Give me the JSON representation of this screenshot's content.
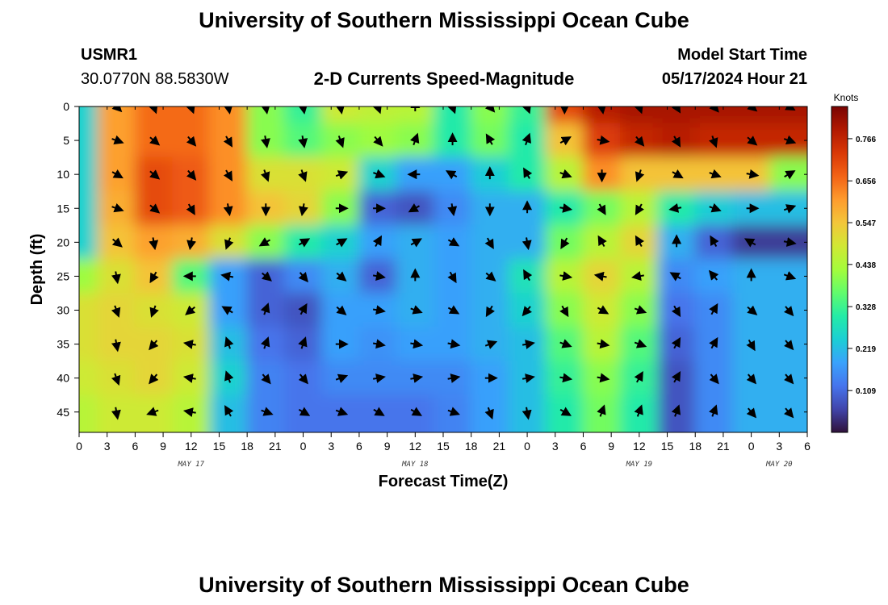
{
  "header": {
    "title_top": "University of Southern Mississippi Ocean Cube",
    "station_id": "USMR1",
    "coordinates": "30.0770N  88.5830W",
    "plot_title": "2-D Currents Speed-Magnitude",
    "model_label": "Model Start Time",
    "model_time": "05/17/2024 Hour 21",
    "title_bottom": "University of Southern Mississippi Ocean Cube"
  },
  "chart_data": {
    "type": "heatmap",
    "title": "2-D Currents Speed-Magnitude",
    "xlabel": "Forecast Time(Z)",
    "ylabel": "Depth (ft)",
    "x_ticks": [
      "0",
      "3",
      "6",
      "9",
      "12",
      "15",
      "18",
      "21",
      "0",
      "3",
      "6",
      "9",
      "12",
      "15",
      "18",
      "21",
      "0",
      "3",
      "6",
      "9",
      "12",
      "15",
      "18",
      "21",
      "0",
      "3",
      "6"
    ],
    "x_hours_from_may17_00z": [
      0,
      3,
      6,
      9,
      12,
      15,
      18,
      21,
      24,
      27,
      30,
      33,
      36,
      39,
      42,
      45,
      48,
      51,
      54,
      57,
      60,
      63,
      66,
      69,
      72,
      75,
      78
    ],
    "date_labels": [
      {
        "label": "MAY 17",
        "hour": 12
      },
      {
        "label": "MAY 18",
        "hour": 36
      },
      {
        "label": "MAY 19",
        "hour": 60
      },
      {
        "label": "MAY 20",
        "hour": 75
      }
    ],
    "y_ticks": [
      0,
      5,
      10,
      15,
      20,
      25,
      30,
      35,
      40,
      45
    ],
    "ylim": [
      0,
      48
    ],
    "xlim": [
      0,
      78
    ],
    "colorbar": {
      "title": "Knots",
      "ticks": [
        0.766,
        0.656,
        0.547,
        0.438,
        0.328,
        0.219,
        0.109
      ],
      "range": [
        0.0,
        0.85
      ],
      "colors": [
        "#30123b",
        "#4145ab",
        "#4675ed",
        "#39a2fc",
        "#1bcfd4",
        "#24eca6",
        "#61fc6c",
        "#a4fc3b",
        "#d1e834",
        "#f3c63a",
        "#fe9b2d",
        "#f36315",
        "#d93806",
        "#b11901",
        "#7a0402"
      ]
    },
    "speed_grid": {
      "hours": [
        0,
        4,
        8,
        12,
        16,
        20,
        24,
        28,
        32,
        36,
        40,
        44,
        48,
        52,
        56,
        60,
        64,
        68,
        72,
        76,
        78
      ],
      "depths": [
        0,
        5,
        10,
        15,
        20,
        25,
        30,
        35,
        40,
        45,
        48
      ],
      "values": [
        [
          0.25,
          0.6,
          0.66,
          0.66,
          0.62,
          0.4,
          0.32,
          0.48,
          0.46,
          0.45,
          0.3,
          0.4,
          0.32,
          0.7,
          0.78,
          0.8,
          0.8,
          0.8,
          0.8,
          0.8,
          0.8
        ],
        [
          0.25,
          0.6,
          0.66,
          0.66,
          0.62,
          0.4,
          0.35,
          0.4,
          0.42,
          0.4,
          0.3,
          0.38,
          0.3,
          0.55,
          0.72,
          0.76,
          0.78,
          0.76,
          0.76,
          0.76,
          0.76
        ],
        [
          0.25,
          0.6,
          0.7,
          0.68,
          0.62,
          0.5,
          0.5,
          0.48,
          0.25,
          0.18,
          0.18,
          0.24,
          0.3,
          0.45,
          0.62,
          0.55,
          0.55,
          0.55,
          0.55,
          0.4,
          0.4
        ],
        [
          0.25,
          0.58,
          0.7,
          0.68,
          0.62,
          0.55,
          0.52,
          0.4,
          0.1,
          0.08,
          0.15,
          0.2,
          0.2,
          0.3,
          0.38,
          0.45,
          0.3,
          0.24,
          0.22,
          0.22,
          0.22
        ],
        [
          0.25,
          0.55,
          0.6,
          0.58,
          0.5,
          0.4,
          0.3,
          0.25,
          0.18,
          0.2,
          0.18,
          0.2,
          0.2,
          0.38,
          0.45,
          0.52,
          0.2,
          0.1,
          0.05,
          0.05,
          0.05
        ],
        [
          0.42,
          0.5,
          0.55,
          0.35,
          0.18,
          0.1,
          0.15,
          0.2,
          0.1,
          0.2,
          0.18,
          0.2,
          0.28,
          0.45,
          0.52,
          0.45,
          0.15,
          0.18,
          0.2,
          0.2,
          0.2
        ],
        [
          0.5,
          0.52,
          0.5,
          0.48,
          0.18,
          0.1,
          0.08,
          0.18,
          0.18,
          0.2,
          0.18,
          0.2,
          0.25,
          0.4,
          0.48,
          0.4,
          0.12,
          0.15,
          0.2,
          0.2,
          0.2
        ],
        [
          0.5,
          0.52,
          0.52,
          0.5,
          0.22,
          0.12,
          0.1,
          0.18,
          0.16,
          0.18,
          0.18,
          0.2,
          0.22,
          0.35,
          0.45,
          0.35,
          0.1,
          0.15,
          0.2,
          0.2,
          0.2
        ],
        [
          0.48,
          0.5,
          0.52,
          0.48,
          0.25,
          0.14,
          0.12,
          0.15,
          0.15,
          0.15,
          0.15,
          0.18,
          0.22,
          0.32,
          0.4,
          0.32,
          0.08,
          0.15,
          0.2,
          0.2,
          0.2
        ],
        [
          0.45,
          0.48,
          0.48,
          0.45,
          0.22,
          0.14,
          0.12,
          0.12,
          0.12,
          0.12,
          0.14,
          0.18,
          0.22,
          0.3,
          0.38,
          0.3,
          0.08,
          0.15,
          0.2,
          0.2,
          0.2
        ],
        [
          0.45,
          0.48,
          0.48,
          0.45,
          0.22,
          0.14,
          0.12,
          0.12,
          0.12,
          0.12,
          0.14,
          0.18,
          0.22,
          0.3,
          0.38,
          0.3,
          0.08,
          0.15,
          0.2,
          0.2,
          0.2
        ]
      ]
    },
    "vector_grid": {
      "hours": [
        4,
        8,
        12,
        16,
        20,
        24,
        28,
        32,
        36,
        40,
        44,
        48,
        52,
        56,
        60,
        64,
        68,
        72,
        76
      ],
      "depths": [
        0,
        5,
        10,
        15,
        20,
        25,
        30,
        35,
        40,
        45
      ],
      "directions_deg": [
        [
          135,
          160,
          160,
          170,
          170,
          170,
          170,
          160,
          0,
          160,
          140,
          160,
          180,
          170,
          160,
          150,
          140,
          130,
          120
        ],
        [
          110,
          130,
          140,
          150,
          170,
          170,
          160,
          140,
          20,
          0,
          330,
          20,
          60,
          100,
          140,
          150,
          160,
          130,
          110
        ],
        [
          120,
          130,
          140,
          150,
          160,
          160,
          70,
          110,
          270,
          300,
          0,
          330,
          110,
          180,
          200,
          120,
          110,
          100,
          60
        ],
        [
          110,
          130,
          150,
          170,
          180,
          190,
          90,
          90,
          240,
          170,
          180,
          0,
          100,
          150,
          210,
          260,
          110,
          90,
          70
        ],
        [
          130,
          170,
          190,
          200,
          240,
          60,
          60,
          30,
          60,
          120,
          150,
          170,
          210,
          330,
          330,
          0,
          330,
          300,
          100
        ],
        [
          170,
          210,
          270,
          280,
          130,
          140,
          130,
          100,
          0,
          150,
          130,
          330,
          100,
          280,
          260,
          300,
          320,
          0,
          110
        ],
        [
          160,
          200,
          230,
          300,
          20,
          30,
          130,
          100,
          110,
          120,
          210,
          220,
          150,
          120,
          110,
          150,
          30,
          130,
          140
        ],
        [
          170,
          220,
          280,
          340,
          20,
          20,
          90,
          100,
          100,
          100,
          70,
          80,
          110,
          100,
          110,
          30,
          30,
          150,
          140
        ],
        [
          160,
          220,
          280,
          340,
          140,
          140,
          70,
          80,
          80,
          80,
          90,
          80,
          100,
          100,
          30,
          30,
          140,
          140,
          140
        ],
        [
          170,
          250,
          280,
          330,
          110,
          120,
          110,
          120,
          120,
          110,
          160,
          170,
          120,
          20,
          20,
          20,
          20,
          140,
          140
        ]
      ]
    }
  }
}
